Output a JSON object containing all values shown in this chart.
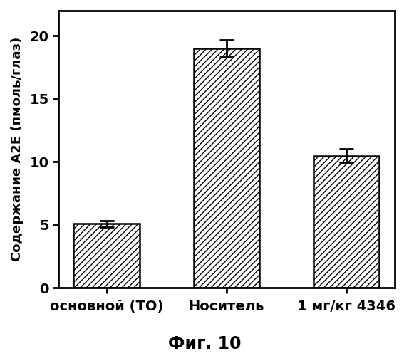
{
  "categories": [
    "основной (TO)",
    "Носитель",
    "1 мг/кг 4346"
  ],
  "values": [
    5.1,
    19.0,
    10.5
  ],
  "errors": [
    0.25,
    0.7,
    0.55
  ],
  "ylabel": "Содержание A2E (пмоль/глаз)",
  "ylim": [
    0,
    22
  ],
  "yticks": [
    0,
    5,
    10,
    15,
    20
  ],
  "figure_label": "Фиг. 10",
  "bar_color": "#ffffff",
  "hatch": "////",
  "edgecolor": "#000000",
  "bar_width": 0.55,
  "figsize": [
    5.74,
    5.0
  ],
  "dpi": 100,
  "tick_fontsize": 14,
  "ylabel_fontsize": 13,
  "xlabel_fontsize": 14,
  "figlabel_fontsize": 17
}
